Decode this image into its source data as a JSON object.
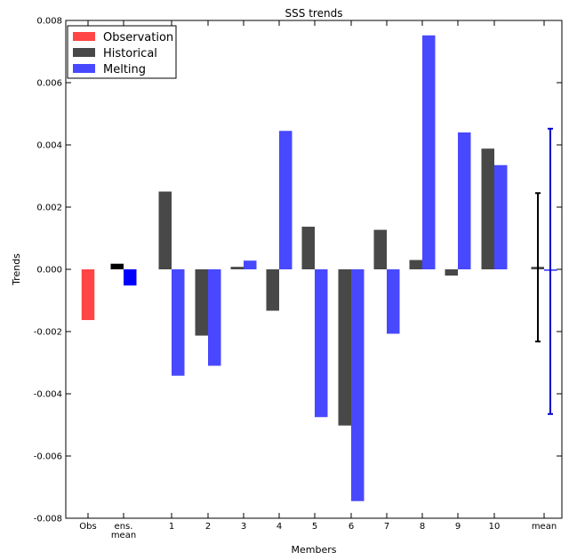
{
  "chart_data": {
    "type": "bar",
    "title": "SSS trends",
    "xlabel": "Members",
    "ylabel": "Trends",
    "ylim": [
      -0.008,
      0.008
    ],
    "yticks": [
      -0.008,
      -0.006,
      -0.004,
      -0.002,
      0.0,
      0.002,
      0.004,
      0.006,
      0.008
    ],
    "ytick_labels": [
      "-0.008",
      "-0.006",
      "-0.004",
      "-0.002",
      "0.000",
      "0.002",
      "0.004",
      "0.006",
      "0.008"
    ],
    "categories": [
      "Obs",
      "ens. mean",
      "1",
      "2",
      "3",
      "4",
      "5",
      "6",
      "7",
      "8",
      "9",
      "10",
      "mean"
    ],
    "tick_labels": [
      {
        "lines": [
          "Obs"
        ]
      },
      {
        "lines": [
          "ens.",
          "mean"
        ]
      },
      {
        "lines": [
          "1"
        ]
      },
      {
        "lines": [
          "2"
        ]
      },
      {
        "lines": [
          "3"
        ]
      },
      {
        "lines": [
          "4"
        ]
      },
      {
        "lines": [
          "5"
        ]
      },
      {
        "lines": [
          "6"
        ]
      },
      {
        "lines": [
          "7"
        ]
      },
      {
        "lines": [
          "8"
        ]
      },
      {
        "lines": [
          "9"
        ]
      },
      {
        "lines": [
          "10"
        ]
      },
      {
        "lines": [
          "mean"
        ]
      }
    ],
    "series": [
      {
        "name": "Observation",
        "color": "#ff4545",
        "values": [
          -0.00163,
          null,
          null,
          null,
          null,
          null,
          null,
          null,
          null,
          null,
          null,
          null,
          null
        ]
      },
      {
        "name": "Historical",
        "color": "#484848",
        "values": [
          null,
          0.00018,
          0.0025,
          -0.00213,
          8e-05,
          -0.00133,
          0.00137,
          -0.00502,
          0.00127,
          0.0003,
          -0.0002,
          0.00388,
          8e-05
        ]
      },
      {
        "name": "Melting",
        "color": "#4848ff",
        "values": [
          null,
          -0.00052,
          -0.00342,
          -0.0031,
          0.00028,
          0.00445,
          -0.00475,
          -0.00745,
          -0.00207,
          0.00752,
          0.0044,
          0.00335,
          -5e-05
        ]
      }
    ],
    "ens_mean_colors": {
      "Historical": "#000000",
      "Melting": "#0000ff"
    },
    "error_bars": [
      {
        "series": "Historical",
        "color": "#000000",
        "low": -0.00232,
        "high": 0.00245
      },
      {
        "series": "Melting",
        "color": "#0000cc",
        "low": -0.00465,
        "high": 0.00452
      }
    ],
    "legend": {
      "placement": "top-left",
      "entries": [
        "Observation",
        "Historical",
        "Melting"
      ]
    },
    "grid": false
  }
}
